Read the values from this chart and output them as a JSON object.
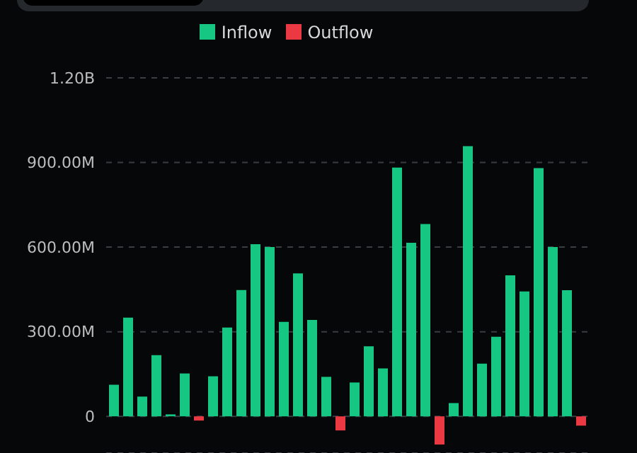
{
  "chart_data": {
    "type": "bar",
    "categories": [
      null,
      null,
      null,
      null,
      null,
      null,
      null,
      null,
      null,
      null,
      null,
      null,
      null,
      null,
      null,
      null,
      null,
      null,
      null,
      null,
      null,
      null,
      null,
      null,
      null,
      null,
      null,
      null,
      null,
      null,
      null,
      null,
      null,
      null
    ],
    "series": [
      {
        "name": "Inflow",
        "color": "#16c784",
        "values": [
          112000000,
          350000000,
          70000000,
          217000000,
          7000000,
          152000000,
          null,
          142000000,
          315000000,
          448000000,
          610000000,
          600000000,
          335000000,
          507000000,
          342000000,
          140000000,
          null,
          120000000,
          248000000,
          170000000,
          882000000,
          615000000,
          682000000,
          null,
          47000000,
          958000000,
          187000000,
          282000000,
          500000000,
          443000000,
          880000000,
          600000000,
          447000000,
          null
        ]
      },
      {
        "name": "Outflow",
        "color": "#ea3943",
        "values": [
          null,
          null,
          null,
          null,
          null,
          null,
          -15000000,
          null,
          null,
          null,
          null,
          null,
          null,
          null,
          null,
          null,
          -50000000,
          null,
          null,
          null,
          null,
          null,
          null,
          -100000000,
          null,
          null,
          null,
          null,
          null,
          null,
          null,
          null,
          null,
          -33000000
        ]
      }
    ],
    "stacked": true,
    "ylim": [
      -130000000,
      1200000000
    ],
    "yticks": [
      {
        "value": 0,
        "label": "0"
      },
      {
        "value": 300000000,
        "label": "300.00M"
      },
      {
        "value": 600000000,
        "label": "600.00M"
      },
      {
        "value": 900000000,
        "label": "900.00M"
      },
      {
        "value": 1200000000,
        "label": "1.20B"
      }
    ],
    "grid": "y",
    "legend": "top"
  }
}
